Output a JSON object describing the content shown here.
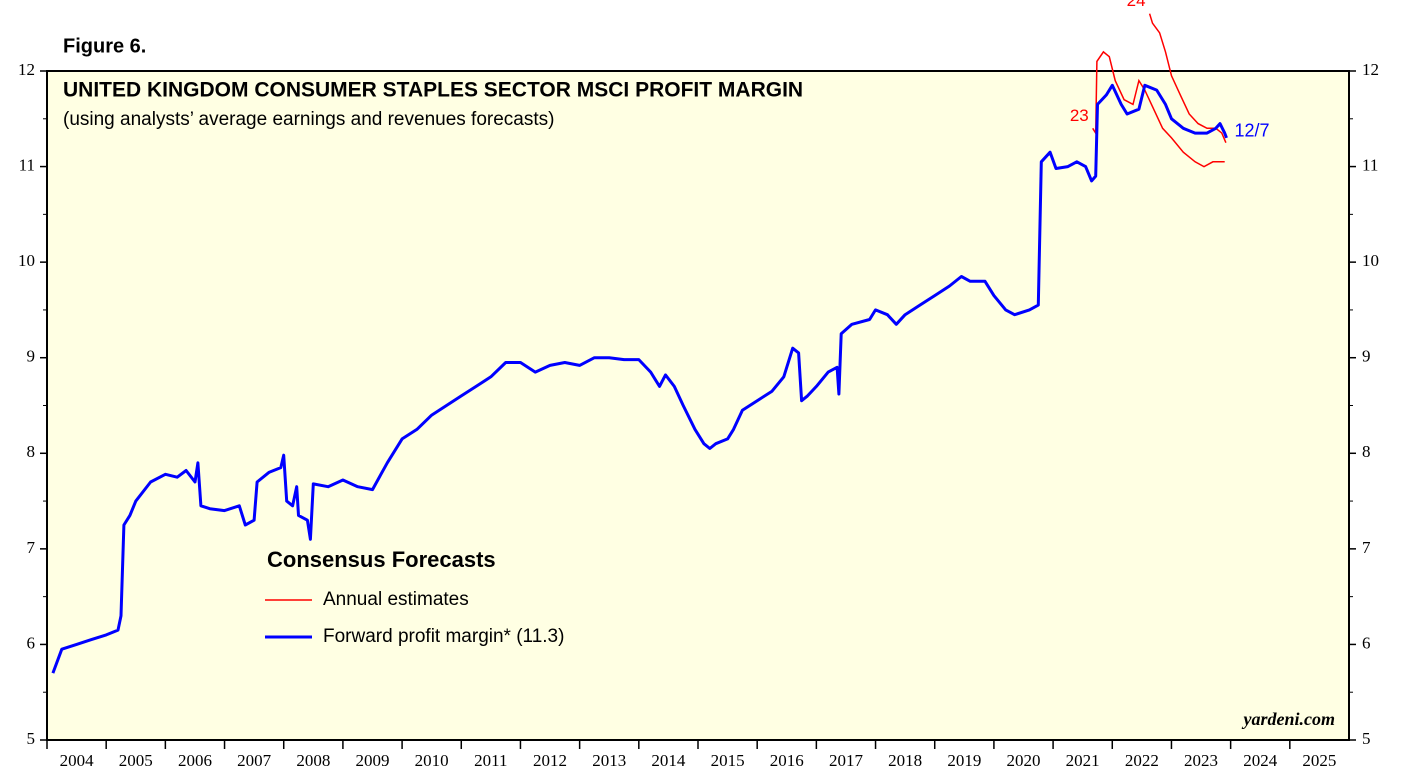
{
  "chart_data": {
    "type": "line",
    "figure_label": "Figure 6.",
    "title": "UNITED KINGDOM CONSUMER STAPLES SECTOR MSCI PROFIT MARGIN",
    "subtitle": "(using analysts’ average earnings and revenues forecasts)",
    "source": "yardeni.com",
    "legend_title": "Consensus Forecasts",
    "xlim": [
      2004,
      2026
    ],
    "xticks": [
      2004,
      2005,
      2006,
      2007,
      2008,
      2009,
      2010,
      2011,
      2012,
      2013,
      2014,
      2015,
      2016,
      2017,
      2018,
      2019,
      2020,
      2021,
      2022,
      2023,
      2024,
      2025
    ],
    "ylim": [
      5,
      12
    ],
    "yticks": [
      5,
      6,
      7,
      8,
      9,
      10,
      11,
      12
    ],
    "series": [
      {
        "name": "Annual estimates",
        "color": "#ff0000",
        "lines": [
          {
            "label": "23",
            "x": [
              2021.67,
              2021.72,
              2021.74,
              2021.85,
              2021.95,
              2022.05,
              2022.2,
              2022.35,
              2022.45,
              2022.55,
              2022.7,
              2022.85,
              2023.0,
              2023.2,
              2023.4,
              2023.55,
              2023.7,
              2023.8,
              2023.9
            ],
            "values": [
              11.4,
              11.35,
              12.1,
              12.2,
              12.15,
              11.9,
              11.7,
              11.65,
              11.9,
              11.8,
              11.6,
              11.4,
              11.3,
              11.15,
              11.05,
              11.0,
              11.05,
              11.05,
              11.05
            ]
          },
          {
            "label": "24",
            "x": [
              2022.63,
              2022.68,
              2022.8,
              2022.9,
              2023.0,
              2023.15,
              2023.3,
              2023.45,
              2023.6,
              2023.75,
              2023.85,
              2023.92
            ],
            "values": [
              12.6,
              12.5,
              12.4,
              12.2,
              11.95,
              11.75,
              11.55,
              11.45,
              11.4,
              11.4,
              11.35,
              11.25
            ]
          }
        ]
      },
      {
        "name": "Forward profit margin* (11.3)",
        "color": "#0000ff",
        "end_label": "12/7",
        "x": [
          2004.1,
          2004.25,
          2004.5,
          2004.75,
          2005.0,
          2005.2,
          2005.25,
          2005.3,
          2005.4,
          2005.5,
          2005.75,
          2006.0,
          2006.2,
          2006.35,
          2006.5,
          2006.55,
          2006.6,
          2006.75,
          2007.0,
          2007.25,
          2007.35,
          2007.5,
          2007.55,
          2007.75,
          2007.95,
          2008.0,
          2008.05,
          2008.15,
          2008.22,
          2008.25,
          2008.4,
          2008.45,
          2008.5,
          2008.75,
          2009.0,
          2009.25,
          2009.5,
          2009.75,
          2010.0,
          2010.25,
          2010.5,
          2010.75,
          2011.0,
          2011.25,
          2011.5,
          2011.75,
          2012.0,
          2012.25,
          2012.5,
          2012.75,
          2013.0,
          2013.25,
          2013.5,
          2013.75,
          2014.0,
          2014.2,
          2014.35,
          2014.45,
          2014.6,
          2014.75,
          2014.95,
          2015.1,
          2015.2,
          2015.3,
          2015.5,
          2015.6,
          2015.75,
          2016.0,
          2016.25,
          2016.45,
          2016.6,
          2016.7,
          2016.75,
          2016.85,
          2017.0,
          2017.2,
          2017.35,
          2017.38,
          2017.42,
          2017.6,
          2017.9,
          2018.0,
          2018.2,
          2018.35,
          2018.5,
          2018.75,
          2019.0,
          2019.25,
          2019.45,
          2019.6,
          2019.85,
          2020.0,
          2020.2,
          2020.35,
          2020.6,
          2020.75,
          2020.8,
          2020.95,
          2021.05,
          2021.25,
          2021.4,
          2021.55,
          2021.65,
          2021.72,
          2021.75,
          2021.9,
          2022.0,
          2022.15,
          2022.25,
          2022.45,
          2022.55,
          2022.75,
          2022.9,
          2023.0,
          2023.2,
          2023.4,
          2023.6,
          2023.75,
          2023.82,
          2023.9,
          2023.93
        ],
        "values": [
          5.7,
          5.95,
          6.0,
          6.05,
          6.1,
          6.15,
          6.3,
          7.25,
          7.35,
          7.5,
          7.7,
          7.78,
          7.75,
          7.82,
          7.7,
          7.9,
          7.45,
          7.42,
          7.4,
          7.45,
          7.25,
          7.3,
          7.7,
          7.8,
          7.85,
          7.98,
          7.5,
          7.45,
          7.65,
          7.35,
          7.3,
          7.1,
          7.68,
          7.65,
          7.72,
          7.65,
          7.62,
          7.9,
          8.15,
          8.25,
          8.4,
          8.5,
          8.6,
          8.7,
          8.8,
          8.95,
          8.95,
          8.85,
          8.92,
          8.95,
          8.92,
          9.0,
          9.0,
          8.98,
          8.98,
          8.85,
          8.7,
          8.82,
          8.7,
          8.5,
          8.25,
          8.1,
          8.05,
          8.1,
          8.15,
          8.25,
          8.45,
          8.55,
          8.65,
          8.8,
          9.1,
          9.05,
          8.55,
          8.6,
          8.7,
          8.85,
          8.9,
          8.62,
          9.25,
          9.35,
          9.4,
          9.5,
          9.45,
          9.35,
          9.45,
          9.55,
          9.65,
          9.75,
          9.85,
          9.8,
          9.8,
          9.65,
          9.5,
          9.45,
          9.5,
          9.55,
          11.05,
          11.15,
          10.98,
          11.0,
          11.05,
          11.0,
          10.85,
          10.9,
          11.65,
          11.75,
          11.85,
          11.65,
          11.55,
          11.6,
          11.85,
          11.8,
          11.65,
          11.5,
          11.4,
          11.35,
          11.35,
          11.4,
          11.45,
          11.35,
          11.3
        ]
      }
    ]
  }
}
